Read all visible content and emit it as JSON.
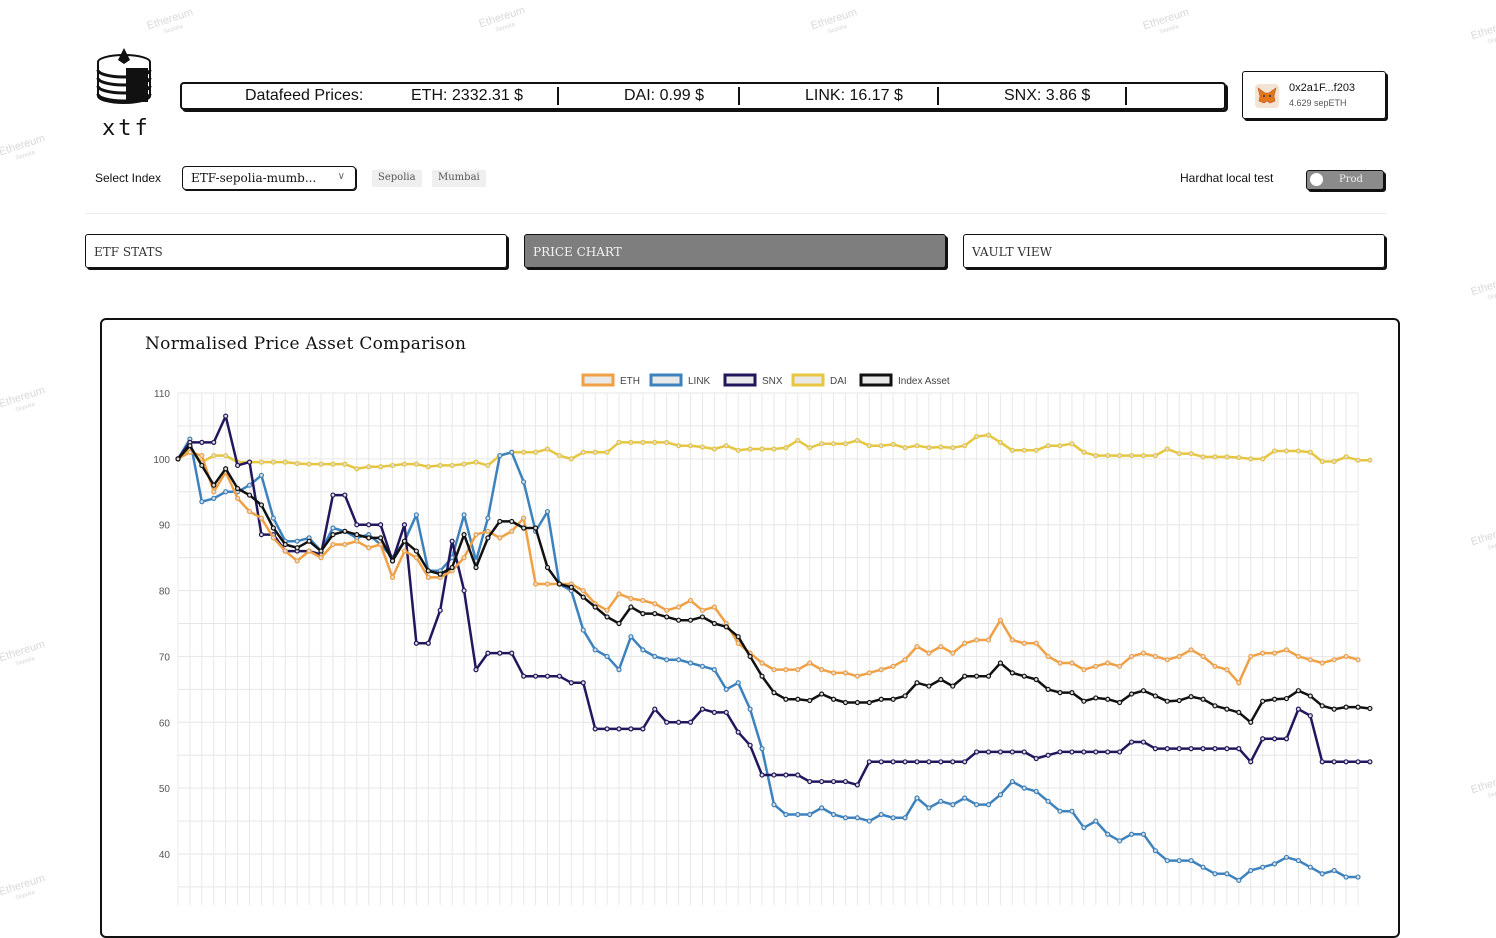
{
  "header": {
    "logo_text": "xtf",
    "datafeed_label": "Datafeed Prices:",
    "prices": [
      {
        "text": "ETH: 2332.31 $"
      },
      {
        "text": "DAI: 0.99 $"
      },
      {
        "text": "LINK: 16.17 $"
      },
      {
        "text": "SNX: 3.86 $"
      }
    ]
  },
  "wallet": {
    "address": "0x2a1F...f203",
    "balance": "4.629 sepETH",
    "icon": "metamask-fox-icon"
  },
  "controls": {
    "select_label": "Select Index",
    "selected_index": "ETF-sepolia-mumb...",
    "chips": [
      "Sepolia",
      "Mumbai"
    ],
    "hardhat_label": "Hardhat local test",
    "toggle_text": "Prod"
  },
  "tabs": [
    {
      "label": "ETF STATS",
      "active": false
    },
    {
      "label": "PRICE CHART",
      "active": true
    },
    {
      "label": "VAULT VIEW",
      "active": false
    }
  ],
  "watermark": {
    "text": "Ethereum",
    "sub": "Sepolia"
  },
  "chart_data": {
    "type": "line",
    "title": "Normalised Price Asset Comparison",
    "xlabel": "",
    "ylabel": "",
    "y_ticks": [
      110,
      100,
      90,
      80,
      70,
      60,
      50,
      40
    ],
    "ylim": [
      34,
      110
    ],
    "grid": true,
    "legend_position": "top",
    "series": [
      {
        "name": "ETH",
        "color": "#f0a045",
        "values": [
          100,
          101,
          100.5,
          95,
          98,
          94,
          92,
          91,
          88,
          86,
          84.5,
          86,
          85,
          87,
          87,
          87.5,
          86.5,
          87,
          82,
          86,
          85,
          82,
          82,
          83,
          85,
          88.5,
          89,
          88,
          89,
          91,
          81,
          81,
          81,
          81,
          80,
          78,
          77,
          79.5,
          78.8,
          78.5,
          78,
          77,
          77.5,
          78.5,
          77,
          77.5,
          75,
          72,
          70.5,
          69,
          68,
          68,
          68,
          69,
          68,
          67.5,
          67.5,
          67,
          67.5,
          68,
          68.5,
          69.5,
          71.5,
          70.5,
          71.5,
          70.5,
          72,
          72.5,
          72.5,
          75.5,
          72.5,
          72,
          72,
          70,
          69,
          69,
          68,
          68.5,
          69,
          68.5,
          70,
          70.5,
          70,
          69.5,
          70,
          71,
          70,
          68.5,
          68,
          66,
          70,
          70.5,
          70.5,
          71,
          70,
          69.5,
          69,
          69.5,
          70,
          69.5
        ]
      },
      {
        "name": "LINK",
        "color": "#3d82bd",
        "values": [
          100,
          103,
          93.5,
          94,
          95,
          95,
          96,
          97.5,
          91,
          87.5,
          87.5,
          88,
          86,
          89.5,
          89,
          88,
          88.5,
          87,
          85,
          87.5,
          91.5,
          83,
          83,
          85,
          91.5,
          84.5,
          91,
          100.5,
          101,
          96.5,
          89,
          92,
          81,
          80,
          74,
          71,
          70,
          68,
          73,
          71,
          70,
          69.5,
          69.5,
          69,
          68.5,
          68,
          65,
          66,
          62,
          56,
          47.5,
          46,
          46,
          46,
          47,
          46,
          45.5,
          45.5,
          45,
          46,
          45.5,
          45.5,
          48.5,
          47,
          48,
          47.5,
          48.5,
          47.5,
          47.5,
          49,
          51,
          50,
          49.5,
          48,
          46.5,
          46.5,
          44,
          45,
          43,
          42,
          43,
          43,
          40.5,
          39,
          39,
          39,
          38,
          37,
          37,
          36,
          37.5,
          38,
          38.5,
          39.5,
          39,
          38,
          37,
          37.5,
          36.5,
          36.5
        ]
      },
      {
        "name": "SNX",
        "color": "#22175c",
        "values": [
          100,
          102.5,
          102.5,
          102.5,
          106.5,
          99,
          99.5,
          88.5,
          88.5,
          86,
          86,
          86,
          85.5,
          94.5,
          94.5,
          90,
          90,
          90,
          84.5,
          90,
          72,
          72,
          77,
          87.5,
          80,
          68,
          70.5,
          70.5,
          70.5,
          67,
          67,
          67,
          67,
          66,
          66,
          59,
          59,
          59,
          59,
          59,
          62,
          60,
          60,
          60,
          62,
          61.5,
          61.5,
          58.5,
          56.5,
          52,
          52,
          52,
          52,
          51,
          51,
          51,
          51,
          50.5,
          54,
          54,
          54,
          54,
          54,
          54,
          54,
          54,
          54,
          55.5,
          55.5,
          55.5,
          55.5,
          55.5,
          54.5,
          55,
          55.5,
          55.5,
          55.5,
          55.5,
          55.5,
          55.5,
          57,
          57,
          56,
          56,
          56,
          56,
          56,
          56,
          56,
          56,
          54,
          57.5,
          57.5,
          57.5,
          62,
          61,
          54,
          54,
          54,
          54,
          54
        ]
      },
      {
        "name": "DAI",
        "color": "#e6c640",
        "values": [
          100,
          101.5,
          99.5,
          100.5,
          100.5,
          99.5,
          99.5,
          99.5,
          99.5,
          99.5,
          99.3,
          99.2,
          99.2,
          99.2,
          99.2,
          98.5,
          98.8,
          98.8,
          99,
          99.2,
          99.2,
          98.8,
          99,
          99,
          99.2,
          99.5,
          99,
          100.5,
          101,
          101,
          101,
          101.5,
          100.5,
          100,
          101,
          101,
          101,
          102.5,
          102.5,
          102.5,
          102.5,
          102.5,
          102,
          102,
          101.8,
          101.5,
          102,
          101.3,
          101.5,
          101.5,
          101.5,
          101.7,
          102.8,
          101.7,
          102.3,
          102.3,
          102.3,
          102.8,
          102,
          102,
          102.2,
          101.7,
          102,
          101.7,
          101.8,
          101.7,
          102,
          103.4,
          103.6,
          102.5,
          101.3,
          101.3,
          101.3,
          102,
          102,
          102.3,
          101,
          100.5,
          100.5,
          100.5,
          100.5,
          100.5,
          100.5,
          101.5,
          100.8,
          100.8,
          100.3,
          100.3,
          100.3,
          100.2,
          100,
          100,
          101.2,
          101.2,
          101.2,
          101,
          99.6,
          99.6,
          100.3,
          99.8,
          99.8
        ]
      },
      {
        "name": "Index Asset",
        "color": "#111111",
        "values": [
          100,
          102,
          99,
          96,
          98.5,
          95.5,
          94.5,
          93,
          89.5,
          87,
          86.5,
          87.5,
          86,
          88.5,
          89,
          88.5,
          88,
          88,
          84.5,
          87.5,
          86,
          83,
          82.5,
          83.5,
          88.5,
          83.5,
          88,
          90.5,
          90.5,
          89.5,
          89.5,
          83.5,
          81,
          80.5,
          79,
          77.5,
          76,
          75,
          77.5,
          76.5,
          76.5,
          76,
          75.5,
          75.5,
          76,
          75,
          74.5,
          73,
          70,
          67,
          64.5,
          63.5,
          63.5,
          63.3,
          64.3,
          63.5,
          63,
          63,
          63,
          63.5,
          63.5,
          64,
          66,
          65.5,
          66.5,
          65.5,
          67,
          67,
          67,
          69,
          67.5,
          67,
          66.5,
          65,
          64.5,
          64.5,
          63.2,
          63.7,
          63.5,
          63,
          64.3,
          64.8,
          64,
          63.2,
          63.3,
          63.9,
          63.5,
          62.5,
          62,
          61.5,
          60,
          63.2,
          63.5,
          63.6,
          64.8,
          64,
          62.5,
          62,
          62.3,
          62.3,
          62.1
        ]
      }
    ]
  }
}
